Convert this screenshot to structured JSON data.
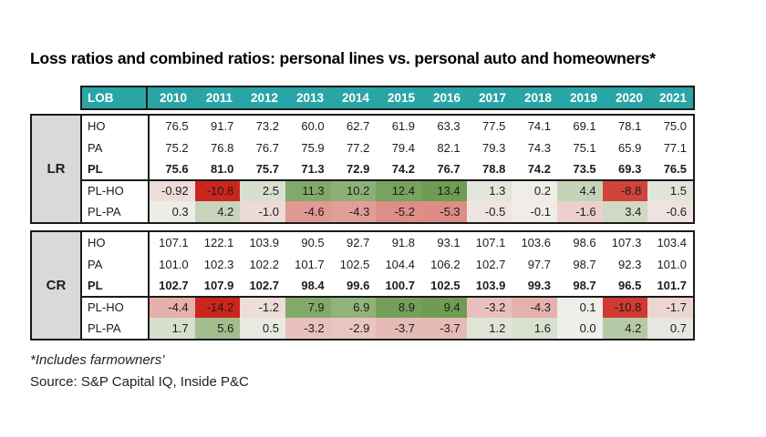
{
  "title": "Loss ratios and combined ratios: personal lines vs. personal auto and homeowners*",
  "footnotes": [
    "*Includes farmowners’",
    "Source: S&P Capital IQ, Inside P&C"
  ],
  "colors": {
    "header_teal": "#2AA5A5",
    "header_text": "#FFFFFF",
    "section_label_bg": "#D9D9D9",
    "border": "#1A1A1A",
    "positive_green_full": "#6E9C52",
    "negative_red_full": "#CB261E",
    "neutral_mid": "#F0EEEA"
  },
  "table": {
    "lob_header": "LOB",
    "years": [
      "2010",
      "2011",
      "2012",
      "2013",
      "2014",
      "2015",
      "2016",
      "2017",
      "2018",
      "2019",
      "2020",
      "2021"
    ],
    "sections": [
      {
        "label": "LR",
        "rows": [
          {
            "lob": "HO",
            "bold": false,
            "values": [
              "76.5",
              "91.7",
              "73.2",
              "60.0",
              "62.7",
              "61.9",
              "63.3",
              "77.5",
              "74.1",
              "69.1",
              "78.1",
              "75.0"
            ]
          },
          {
            "lob": "PA",
            "bold": false,
            "values": [
              "75.2",
              "76.8",
              "76.7",
              "75.9",
              "77.2",
              "79.4",
              "82.1",
              "79.3",
              "74.3",
              "75.1",
              "65.9",
              "77.1"
            ]
          },
          {
            "lob": "PL",
            "bold": true,
            "values": [
              "75.6",
              "81.0",
              "75.7",
              "71.3",
              "72.9",
              "74.2",
              "76.7",
              "78.8",
              "74.2",
              "73.5",
              "69.3",
              "76.5"
            ]
          },
          {
            "lob": "PL-HO",
            "bold": false,
            "separator": true,
            "values": [
              "-0.92",
              "-10.8",
              "2.5",
              "11.3",
              "10.2",
              "12.4",
              "13.4",
              "1.3",
              "0.2",
              "4.4",
              "-8.8",
              "1.5"
            ],
            "cell_colors": [
              "#EDDDD9",
              "#CB261E",
              "#D8DFCE",
              "#82A96A",
              "#8DB076",
              "#78A25D",
              "#6E9C52",
              "#E3E6DB",
              "#EEEDE8",
              "#C5D3B8",
              "#D0443C",
              "#E1E5D9"
            ]
          },
          {
            "lob": "PL-PA",
            "bold": false,
            "values": [
              "0.3",
              "4.2",
              "-1.0",
              "-4.6",
              "-4.3",
              "-5.2",
              "-5.3",
              "-0.5",
              "-0.1",
              "-1.6",
              "3.4",
              "-0.6"
            ],
            "cell_colors": [
              "#EDECE7",
              "#C7D4BA",
              "#EDDBD7",
              "#E09993",
              "#E19E99",
              "#DE8E88",
              "#DE8C86",
              "#EEE5E1",
              "#F0ECE8",
              "#EBD0CC",
              "#CFD9C3",
              "#EEE3DF"
            ]
          }
        ]
      },
      {
        "label": "CR",
        "rows": [
          {
            "lob": "HO",
            "bold": false,
            "values": [
              "107.1",
              "122.1",
              "103.9",
              "90.5",
              "92.7",
              "91.8",
              "93.1",
              "107.1",
              "103.6",
              "98.6",
              "107.3",
              "103.4"
            ]
          },
          {
            "lob": "PA",
            "bold": false,
            "values": [
              "101.0",
              "102.3",
              "102.2",
              "101.7",
              "102.5",
              "104.4",
              "106.2",
              "102.7",
              "97.7",
              "98.7",
              "92.3",
              "101.0"
            ]
          },
          {
            "lob": "PL",
            "bold": true,
            "values": [
              "102.7",
              "107.9",
              "102.7",
              "98.4",
              "99.6",
              "100.7",
              "102.5",
              "103.9",
              "99.3",
              "98.7",
              "96.5",
              "101.7"
            ]
          },
          {
            "lob": "PL-HO",
            "bold": false,
            "separator": true,
            "values": [
              "-4.4",
              "-14.2",
              "-1.2",
              "7.9",
              "6.9",
              "8.9",
              "9.4",
              "-3.2",
              "-4.3",
              "0.1",
              "-10.8",
              "-1.7"
            ],
            "cell_colors": [
              "#E5B0AB",
              "#CB261E",
              "#EDDDD9",
              "#83A96A",
              "#91B27A",
              "#75A05A",
              "#6E9C52",
              "#E8C1BC",
              "#E5B1AC",
              "#EFEDE8",
              "#CF3A32",
              "#ECD6D2"
            ]
          },
          {
            "lob": "PL-PA",
            "bold": false,
            "values": [
              "1.7",
              "5.6",
              "0.5",
              "-3.2",
              "-2.9",
              "-3.7",
              "-3.7",
              "1.2",
              "1.6",
              "0.0",
              "4.2",
              "0.7"
            ],
            "cell_colors": [
              "#D8DFCE",
              "#A3BD8F",
              "#E9EAE2",
              "#E8C1BC",
              "#E8C5C0",
              "#E6BAB5",
              "#E6BAB5",
              "#DFE4D7",
              "#DAE0D0",
              "#F0EEEA",
              "#B6C9A6",
              "#E6E8DF"
            ]
          }
        ]
      }
    ]
  },
  "chart_data": {
    "type": "table",
    "title": "Loss ratios and combined ratios: personal lines vs. personal auto and homeowners*",
    "columns": [
      2010,
      2011,
      2012,
      2013,
      2014,
      2015,
      2016,
      2017,
      2018,
      2019,
      2020,
      2021
    ],
    "row_groups": [
      {
        "group": "LR",
        "rows": [
          {
            "label": "HO",
            "values": [
              76.5,
              91.7,
              73.2,
              60.0,
              62.7,
              61.9,
              63.3,
              77.5,
              74.1,
              69.1,
              78.1,
              75.0
            ]
          },
          {
            "label": "PA",
            "values": [
              75.2,
              76.8,
              76.7,
              75.9,
              77.2,
              79.4,
              82.1,
              79.3,
              74.3,
              75.1,
              65.9,
              77.1
            ]
          },
          {
            "label": "PL",
            "values": [
              75.6,
              81.0,
              75.7,
              71.3,
              72.9,
              74.2,
              76.7,
              78.8,
              74.2,
              73.5,
              69.3,
              76.5
            ]
          },
          {
            "label": "PL-HO",
            "values": [
              -0.92,
              -10.8,
              2.5,
              11.3,
              10.2,
              12.4,
              13.4,
              1.3,
              0.2,
              4.4,
              -8.8,
              1.5
            ],
            "heatmap": true
          },
          {
            "label": "PL-PA",
            "values": [
              0.3,
              4.2,
              -1.0,
              -4.6,
              -4.3,
              -5.2,
              -5.3,
              -0.5,
              -0.1,
              -1.6,
              3.4,
              -0.6
            ],
            "heatmap": true
          }
        ]
      },
      {
        "group": "CR",
        "rows": [
          {
            "label": "HO",
            "values": [
              107.1,
              122.1,
              103.9,
              90.5,
              92.7,
              91.8,
              93.1,
              107.1,
              103.6,
              98.6,
              107.3,
              103.4
            ]
          },
          {
            "label": "PA",
            "values": [
              101.0,
              102.3,
              102.2,
              101.7,
              102.5,
              104.4,
              106.2,
              102.7,
              97.7,
              98.7,
              92.3,
              101.0
            ]
          },
          {
            "label": "PL",
            "values": [
              102.7,
              107.9,
              102.7,
              98.4,
              99.6,
              100.7,
              102.5,
              103.9,
              99.3,
              98.7,
              96.5,
              101.7
            ]
          },
          {
            "label": "PL-HO",
            "values": [
              -4.4,
              -14.2,
              -1.2,
              7.9,
              6.9,
              8.9,
              9.4,
              -3.2,
              -4.3,
              0.1,
              -10.8,
              -1.7
            ],
            "heatmap": true
          },
          {
            "label": "PL-PA",
            "values": [
              1.7,
              5.6,
              0.5,
              -3.2,
              -2.9,
              -3.7,
              -3.7,
              1.2,
              1.6,
              0.0,
              4.2,
              0.7
            ],
            "heatmap": true
          }
        ]
      }
    ],
    "legend_position": "none",
    "grid": false
  }
}
